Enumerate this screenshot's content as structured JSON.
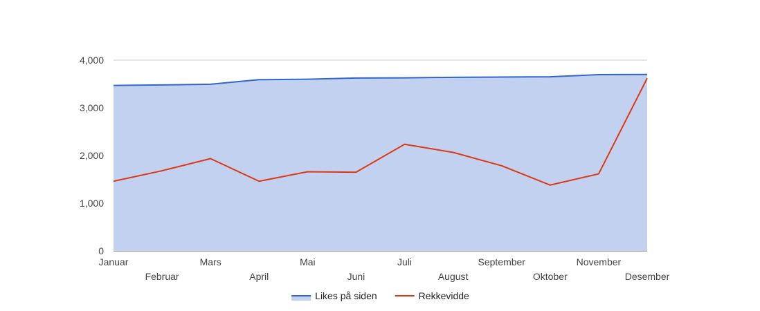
{
  "chart_data": {
    "type": "area",
    "categories": [
      "Januar",
      "Februar",
      "Mars",
      "April",
      "Mai",
      "Juni",
      "Juli",
      "August",
      "September",
      "Oktober",
      "November",
      "Desember"
    ],
    "series": [
      {
        "name": "Likes på siden",
        "type": "area",
        "color": "#3366cc",
        "fill": "#c3d1f0",
        "values": [
          3470,
          3480,
          3495,
          3590,
          3600,
          3625,
          3628,
          3640,
          3645,
          3650,
          3695,
          3700
        ]
      },
      {
        "name": "Rekkevidde",
        "type": "line",
        "color": "#dc3912",
        "values": [
          1460,
          1680,
          1935,
          1460,
          1660,
          1650,
          2235,
          2065,
          1785,
          1380,
          1615,
          3620
        ]
      }
    ],
    "ylim": [
      0,
      4000
    ],
    "yticks": [
      0,
      1000,
      2000,
      3000,
      4000
    ],
    "ytick_labels": [
      "0",
      "1,000",
      "2,000",
      "3,000",
      "4,000"
    ],
    "grid": true,
    "legend_position": "bottom"
  }
}
